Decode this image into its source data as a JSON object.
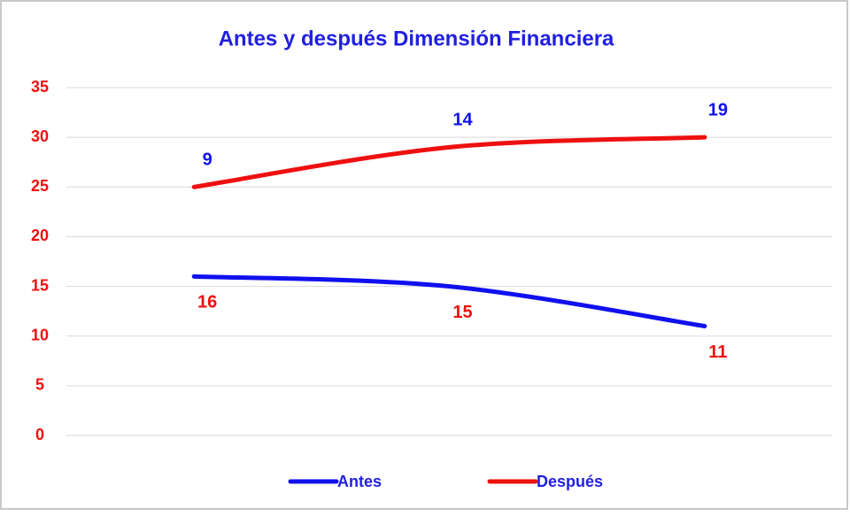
{
  "chart_data": {
    "type": "line",
    "stacked": true,
    "smooth": true,
    "title": "Antes y después Dimensión Financiera",
    "title_color": "#1f1fe0",
    "categories": [
      null,
      null,
      null
    ],
    "series": [
      {
        "name": "Antes",
        "color": "#1010ee",
        "label_color": "#ee1010",
        "label_position": "below",
        "values": [
          16,
          15,
          11
        ]
      },
      {
        "name": "Después",
        "color": "#ee1010",
        "label_color": "#1010ee",
        "label_position": "above",
        "values": [
          9,
          14,
          19
        ]
      }
    ],
    "ylim": [
      0,
      35
    ],
    "yticks": [
      0,
      5,
      10,
      15,
      20,
      25,
      30,
      35
    ],
    "ytick_color": "#ee1010",
    "grid": true,
    "legend": "bottom"
  }
}
